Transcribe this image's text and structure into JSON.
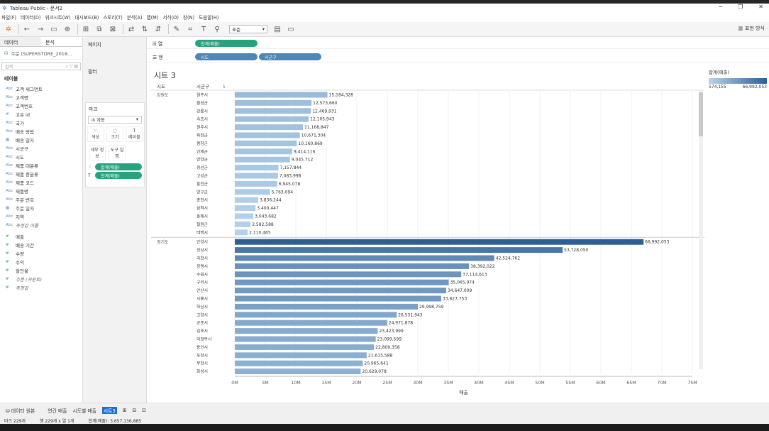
{
  "window": {
    "title": "Tableau Public - 문서2",
    "controls": [
      "─",
      "❐",
      "✕"
    ]
  },
  "menu": [
    "파일(F)",
    "데이터(D)",
    "워크시트(W)",
    "대시보드(B)",
    "스토리(T)",
    "분석(A)",
    "맵(M)",
    "서식(O)",
    "창(N)",
    "도움말(H)"
  ],
  "toolbar": {
    "format_select": "표준",
    "show_me": "표현 방식"
  },
  "data_pane": {
    "tab_data": "데이터",
    "tab_analytics": "분석",
    "source": "주문 (SUPERSTORE_2018...",
    "search_placeholder": "검색",
    "tables_heading": "테이블",
    "fields": [
      {
        "icon": "Abc",
        "name": "고객 세그먼트",
        "kind": "dim"
      },
      {
        "icon": "Abc",
        "name": "고객명",
        "kind": "dim"
      },
      {
        "icon": "Abc",
        "name": "고객번호",
        "kind": "dim"
      },
      {
        "icon": "#",
        "name": "고유 id",
        "kind": "dim"
      },
      {
        "icon": "Abc",
        "name": "국가",
        "kind": "dim"
      },
      {
        "icon": "Abc",
        "name": "배송 방법",
        "kind": "dim"
      },
      {
        "icon": "▦",
        "name": "배송 일자",
        "kind": "dim"
      },
      {
        "icon": "Abc",
        "name": "시군구",
        "kind": "dim"
      },
      {
        "icon": "Abc",
        "name": "시도",
        "kind": "dim"
      },
      {
        "icon": "Abc",
        "name": "제품 대분류",
        "kind": "dim"
      },
      {
        "icon": "Abc",
        "name": "제품 중분류",
        "kind": "dim"
      },
      {
        "icon": "Abc",
        "name": "제품 코드",
        "kind": "dim"
      },
      {
        "icon": "Abc",
        "name": "제품명",
        "kind": "dim"
      },
      {
        "icon": "Abc",
        "name": "주문 번호",
        "kind": "dim"
      },
      {
        "icon": "▦",
        "name": "주문 일자",
        "kind": "dim"
      },
      {
        "icon": "Abc",
        "name": "지역",
        "kind": "dim"
      },
      {
        "icon": "Abc",
        "name": "측정값 이름",
        "kind": "dim-it"
      },
      {
        "icon": "#",
        "name": "매출",
        "kind": "meas"
      },
      {
        "icon": "#",
        "name": "배송 기간",
        "kind": "meas"
      },
      {
        "icon": "#",
        "name": "수량",
        "kind": "meas"
      },
      {
        "icon": "#",
        "name": "수익",
        "kind": "meas"
      },
      {
        "icon": "#",
        "name": "할인율",
        "kind": "meas"
      },
      {
        "icon": "#",
        "name": "주문 (카운트)",
        "kind": "meas-it"
      },
      {
        "icon": "#",
        "name": "측정값",
        "kind": "meas-it"
      }
    ]
  },
  "shelves": {
    "pages": "페이지",
    "filters": "필터",
    "marks": "마크",
    "marks_type": "자동",
    "mark_buttons": [
      "색상",
      "크기",
      "레이블",
      "세부 정보",
      "도구 설명"
    ],
    "mark_pills": [
      "합계(매출)",
      "합계(매출)"
    ],
    "columns_label": "열",
    "rows_label": "행",
    "columns_pill": "합계(매출)",
    "rows_pills": [
      "시도",
      "시군구"
    ]
  },
  "sheet": {
    "title": "시트 3",
    "col_header_sido": "시도",
    "col_header_sigungu": "시군구"
  },
  "legend": {
    "title": "합계(매출)",
    "min": "574,155",
    "max": "66,992,053"
  },
  "chart_data": {
    "type": "bar",
    "xlabel": "매출",
    "xlim": [
      0,
      75000000
    ],
    "x_ticks": [
      "0M",
      "5M",
      "10M",
      "15M",
      "20M",
      "25M",
      "30M",
      "35M",
      "40M",
      "45M",
      "50M",
      "55M",
      "60M",
      "65M",
      "70M",
      "75M"
    ],
    "groups": [
      {
        "name": "강원도",
        "rows": [
          {
            "label": "원주시",
            "value": 15184328,
            "text": "15,184,328"
          },
          {
            "label": "횡성군",
            "value": 12573660,
            "text": "12,573,660"
          },
          {
            "label": "강릉시",
            "value": 12469931,
            "text": "12,469,931"
          },
          {
            "label": "속초시",
            "value": 12105943,
            "text": "12,105,943"
          },
          {
            "label": "원주시",
            "value": 11168847,
            "text": "11,168,847"
          },
          {
            "label": "화천군",
            "value": 10671304,
            "text": "10,671,304"
          },
          {
            "label": "평창군",
            "value": 10160869,
            "text": "10,160,869"
          },
          {
            "label": "인제군",
            "value": 9414116,
            "text": "9,414,116"
          },
          {
            "label": "양양군",
            "value": 9045712,
            "text": "9,045,712"
          },
          {
            "label": "정선군",
            "value": 7157844,
            "text": "7,157,844"
          },
          {
            "label": "고성군",
            "value": 7083998,
            "text": "7,083,998"
          },
          {
            "label": "홍천군",
            "value": 6945078,
            "text": "6,945,078"
          },
          {
            "label": "양구군",
            "value": 5763094,
            "text": "5,763,094"
          },
          {
            "label": "춘천시",
            "value": 3836244,
            "text": "3,836,244"
          },
          {
            "label": "삼척시",
            "value": 3400447,
            "text": "3,400,447"
          },
          {
            "label": "동해시",
            "value": 3043682,
            "text": "3,043,682"
          },
          {
            "label": "철원군",
            "value": 2582588,
            "text": "2,582,588"
          },
          {
            "label": "태백시",
            "value": 2110465,
            "text": "2,110,465"
          }
        ]
      },
      {
        "name": "경기도",
        "rows": [
          {
            "label": "안양시",
            "value": 66992053,
            "text": "66,992,053"
          },
          {
            "label": "성남시",
            "value": 53728050,
            "text": "53,728,050"
          },
          {
            "label": "과천시",
            "value": 42524762,
            "text": "42,524,762"
          },
          {
            "label": "광명시",
            "value": 38392022,
            "text": "38,392,022"
          },
          {
            "label": "수원시",
            "value": 37114613,
            "text": "37,114,613"
          },
          {
            "label": "구리시",
            "value": 35065974,
            "text": "35,065,974"
          },
          {
            "label": "안산시",
            "value": 34647009,
            "text": "34,647,009"
          },
          {
            "label": "시흥시",
            "value": 33827753,
            "text": "33,827,753"
          },
          {
            "label": "하남시",
            "value": 29998759,
            "text": "29,998,759"
          },
          {
            "label": "고양시",
            "value": 26531943,
            "text": "26,531,943"
          },
          {
            "label": "군포시",
            "value": 24971878,
            "text": "24,971,878"
          },
          {
            "label": "김포시",
            "value": 23423999,
            "text": "23,423,999"
          },
          {
            "label": "의정부시",
            "value": 23099599,
            "text": "23,099,599"
          },
          {
            "label": "용인시",
            "value": 22809358,
            "text": "22,809,358"
          },
          {
            "label": "포천시",
            "value": 21615588,
            "text": "21,615,588"
          },
          {
            "label": "부천시",
            "value": 20965641,
            "text": "20,965,641"
          },
          {
            "label": "화성시",
            "value": 20629078,
            "text": "20,629,078"
          }
        ]
      }
    ]
  },
  "bottom_tabs": {
    "data_source": "데이터 원본",
    "tabs": [
      "연간 매출",
      "시도별 매출",
      "시트3"
    ]
  },
  "status": {
    "marks": "마크 229개",
    "rows": "행 229개 x 열 1개",
    "sum": "합계(매출): 3,657,136,885"
  }
}
